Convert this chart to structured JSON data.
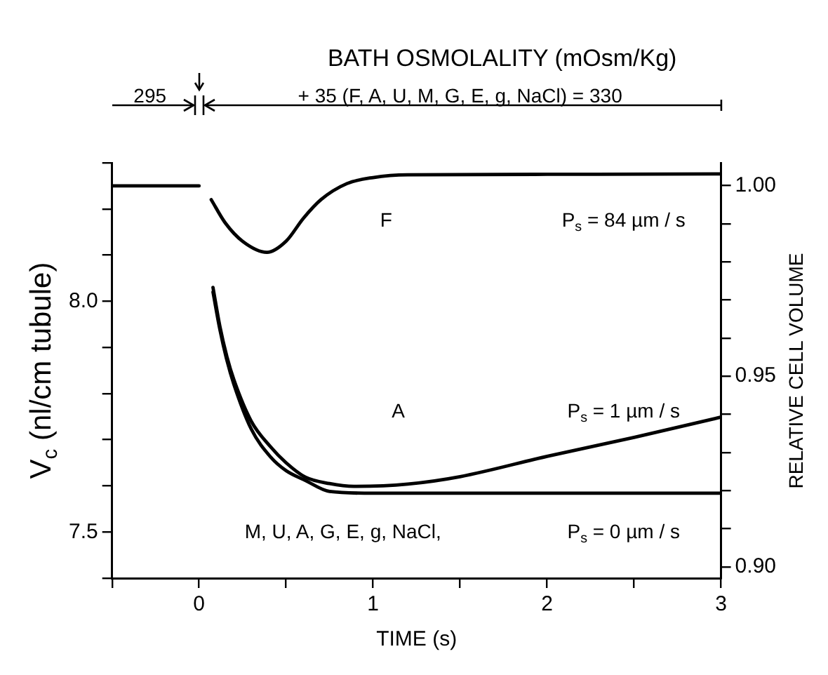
{
  "chart_data": {
    "type": "line",
    "title": "BATH OSMOLALITY (mOsm/Kg)",
    "xlabel": "TIME (s)",
    "ylabel": "V$_{c}$ (nl/cm tubule)",
    "y2label": "RELATIVE CELL VOLUME",
    "xlim": [
      -0.5,
      3
    ],
    "xticks": [
      {
        "value": -0.5,
        "label": null
      },
      0,
      {
        "value": 0.5,
        "label": null
      },
      1,
      {
        "value": 1.5,
        "label": null
      },
      2,
      {
        "value": 2.5,
        "label": null
      },
      3
    ],
    "ylim": [
      7.4,
      8.3
    ],
    "yticks": [
      {
        "value": 7.4,
        "label": null
      },
      {
        "value": 7.5,
        "label": "7.5"
      },
      {
        "value": 7.6,
        "label": null
      },
      {
        "value": 7.7,
        "label": null
      },
      {
        "value": 7.8,
        "label": null
      },
      {
        "value": 7.9,
        "label": null
      },
      {
        "value": 8,
        "label": "8.0"
      },
      {
        "value": 8.1,
        "label": null
      },
      {
        "value": 8.2,
        "label": null
      },
      {
        "value": 8.3,
        "label": null
      }
    ],
    "y2lim": [
      0.897,
      1.006
    ],
    "y2ticks": [
      {
        "value": 0.9,
        "label": "0.90"
      },
      {
        "value": 0.91,
        "label": null
      },
      {
        "value": 0.92,
        "label": null
      },
      {
        "value": 0.93,
        "label": null
      },
      {
        "value": 0.94,
        "label": null
      },
      {
        "value": 0.95,
        "label": "0.95"
      },
      {
        "value": 0.96,
        "label": null
      },
      {
        "value": 0.97,
        "label": null
      },
      {
        "value": 0.98,
        "label": null
      },
      {
        "value": 0.99,
        "label": null
      },
      {
        "value": 1,
        "label": "1.00"
      }
    ],
    "grid": false,
    "legend": false,
    "marker": "none",
    "line_style": "solid",
    "series": [
      {
        "color": "#000000",
        "x": [
          -0.5,
          0
        ],
        "values": [
          8.25,
          8.25
        ]
      },
      {
        "name": "F",
        "color": "#000000",
        "x": [
          0.07,
          0.15,
          0.25,
          0.39,
          0.5,
          0.6,
          0.7,
          0.85,
          1.0,
          1.2,
          2,
          3
        ],
        "values": [
          8.22,
          8.17,
          8.13,
          8.106,
          8.13,
          8.18,
          8.22,
          8.255,
          8.268,
          8.274,
          8.275,
          8.276
        ]
      },
      {
        "color": "#000000",
        "x": [
          0.08,
          0.12,
          0.16,
          0.2,
          0.3,
          0.41,
          0.5,
          0.61,
          0.75,
          0.89,
          1.2,
          1.5,
          2,
          2.5,
          3
        ],
        "values": [
          8.03,
          7.945,
          7.88,
          7.83,
          7.74,
          7.685,
          7.65,
          7.619,
          7.605,
          7.599,
          7.604,
          7.62,
          7.664,
          7.705,
          7.749
        ]
      },
      {
        "name": "M, U, A, G, E, g, NaCl,",
        "color": "#000000",
        "x": [
          0.08,
          0.12,
          0.16,
          0.2,
          0.3,
          0.41,
          0.5,
          0.61,
          0.75,
          1,
          2,
          3
        ],
        "values": [
          8.02,
          7.938,
          7.872,
          7.82,
          7.723,
          7.663,
          7.633,
          7.612,
          7.588,
          7.584,
          7.584,
          7.584
        ]
      }
    ],
    "annotations": [
      "295",
      "+ 35 (F, A, U, M, G, E, g, NaCl) = 330",
      "P$_{s}$ = 84 µm / s",
      "P$_{s}$ = 1 µm / s",
      "P$_{s}$ = 0 µm / s",
      "A"
    ]
  }
}
